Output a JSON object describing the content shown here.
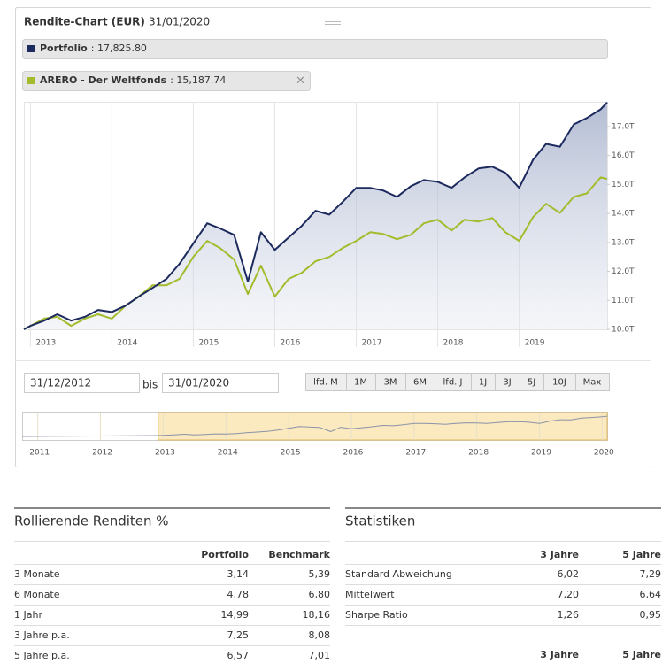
{
  "header": {
    "title": "Rendite-Chart (EUR)",
    "date": "31/01/2020"
  },
  "chart_data": {
    "type": "line",
    "legend_values": [
      ": 17,825.80",
      ": 15,187.74"
    ],
    "x": [
      2012.92,
      2013.0,
      2013.17,
      2013.33,
      2013.5,
      2013.67,
      2013.83,
      2014.0,
      2014.17,
      2014.33,
      2014.5,
      2014.67,
      2014.83,
      2015.0,
      2015.17,
      2015.33,
      2015.5,
      2015.67,
      2015.83,
      2016.0,
      2016.17,
      2016.33,
      2016.5,
      2016.67,
      2016.83,
      2017.0,
      2017.17,
      2017.33,
      2017.5,
      2017.67,
      2017.83,
      2018.0,
      2018.17,
      2018.33,
      2018.5,
      2018.67,
      2018.83,
      2019.0,
      2019.17,
      2019.33,
      2019.5,
      2019.67,
      2019.83,
      2020.0,
      2020.08
    ],
    "series": [
      {
        "name": "Portfolio",
        "color": "#1c2a5e",
        "values": [
          10.0,
          10.12,
          10.3,
          10.52,
          10.3,
          10.43,
          10.67,
          10.6,
          10.82,
          11.13,
          11.43,
          11.74,
          12.26,
          12.96,
          13.66,
          13.48,
          13.26,
          11.65,
          13.35,
          12.74,
          13.17,
          13.57,
          14.09,
          13.96,
          14.39,
          14.88,
          14.88,
          14.79,
          14.57,
          14.94,
          15.15,
          15.09,
          14.88,
          15.24,
          15.55,
          15.61,
          15.4,
          14.88,
          15.85,
          16.4,
          16.3,
          17.07,
          17.29,
          17.59,
          17.83
        ]
      },
      {
        "name": "ARERO - Der Weltfonds",
        "color": "#a3bb2c",
        "values": [
          10.0,
          10.12,
          10.37,
          10.43,
          10.12,
          10.37,
          10.52,
          10.37,
          10.82,
          11.13,
          11.52,
          11.52,
          11.74,
          12.5,
          13.05,
          12.8,
          12.41,
          11.22,
          12.2,
          11.13,
          11.74,
          11.95,
          12.35,
          12.5,
          12.8,
          13.05,
          13.35,
          13.29,
          13.11,
          13.26,
          13.66,
          13.78,
          13.41,
          13.78,
          13.72,
          13.84,
          13.35,
          13.05,
          13.87,
          14.33,
          14.02,
          14.57,
          14.69,
          15.24,
          15.19
        ]
      }
    ],
    "xlim": [
      2012.92,
      2020.08
    ],
    "xticks": [
      2013,
      2014,
      2015,
      2016,
      2017,
      2018,
      2019
    ],
    "ylim": [
      10,
      17.85
    ],
    "yticks": [
      {
        "value": 10,
        "label": "10.0T"
      },
      {
        "value": 11,
        "label": "11.0T"
      },
      {
        "value": 12,
        "label": "12.0T"
      },
      {
        "value": 13,
        "label": "13.0T"
      },
      {
        "value": 14,
        "label": "14.0T"
      },
      {
        "value": 15,
        "label": "15.0T"
      },
      {
        "value": 16,
        "label": "16.0T"
      },
      {
        "value": 17,
        "label": "17.0T"
      }
    ],
    "grid": true
  },
  "range": {
    "from": "31/12/2012",
    "separator": "bis",
    "to": "31/01/2020",
    "buttons": [
      "lfd. M",
      "1M",
      "3M",
      "6M",
      "lfd. J",
      "1J",
      "3J",
      "5J",
      "10J",
      "Max"
    ]
  },
  "navigator": {
    "xlim": [
      2010.75,
      2020.08
    ],
    "xticks": [
      2011,
      2012,
      2013,
      2014,
      2015,
      2016,
      2017,
      2018,
      2019,
      2020
    ]
  },
  "rolling": {
    "title": "Rollierende Renditen %",
    "columns": [
      "Portfolio",
      "Benchmark"
    ],
    "rows": [
      [
        "3 Monate",
        "3,14",
        "5,39"
      ],
      [
        "6 Monate",
        "4,78",
        "6,80"
      ],
      [
        "1 Jahr",
        "14,99",
        "18,16"
      ],
      [
        "3 Jahre p.a.",
        "7,25",
        "8,08"
      ],
      [
        "5 Jahre p.a.",
        "6,57",
        "7,01"
      ]
    ]
  },
  "stats": {
    "title": "Statistiken",
    "columns": [
      "3 Jahre",
      "5 Jahre"
    ],
    "rows": [
      [
        "Standard Abweichung",
        "6,02",
        "7,29"
      ],
      [
        "Mittelwert",
        "7,20",
        "6,64"
      ],
      [
        "Sharpe Ratio",
        "1,26",
        "0,95"
      ]
    ],
    "columns2": [
      "3 Jahre",
      "5 Jahre"
    ]
  }
}
